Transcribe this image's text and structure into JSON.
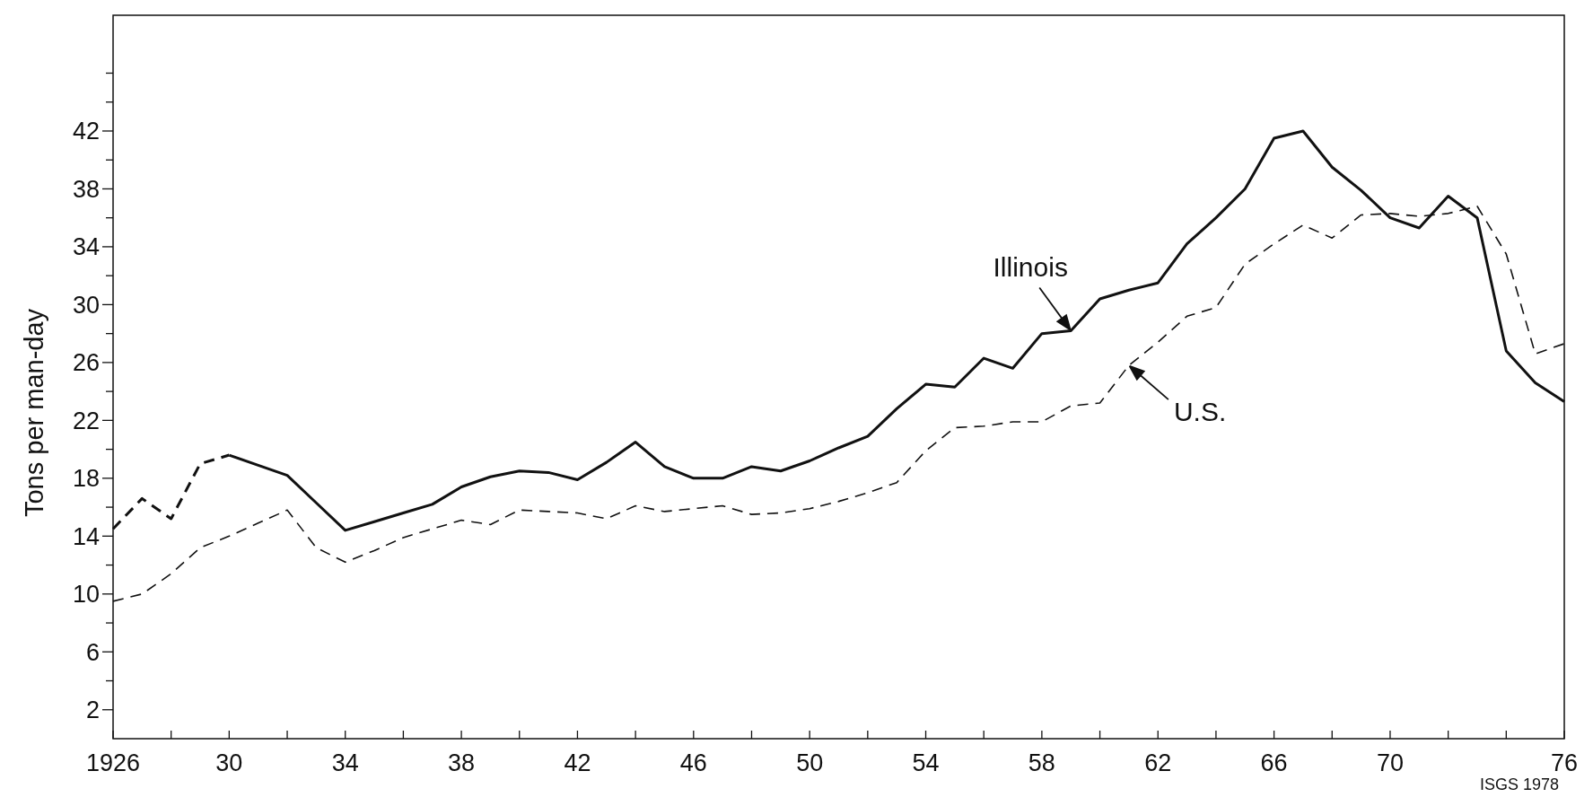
{
  "chart_data": {
    "type": "line",
    "ylabel": "Tons per man-day",
    "xlim": [
      1926,
      1976
    ],
    "xticks": [
      {
        "value": 1926,
        "label": "1926"
      },
      {
        "value": 1928,
        "label": null
      },
      {
        "value": 1930,
        "label": "30"
      },
      {
        "value": 1932,
        "label": null
      },
      {
        "value": 1934,
        "label": "34"
      },
      {
        "value": 1936,
        "label": null
      },
      {
        "value": 1938,
        "label": "38"
      },
      {
        "value": 1940,
        "label": null
      },
      {
        "value": 1942,
        "label": "42"
      },
      {
        "value": 1944,
        "label": null
      },
      {
        "value": 1946,
        "label": "46"
      },
      {
        "value": 1948,
        "label": null
      },
      {
        "value": 1950,
        "label": "50"
      },
      {
        "value": 1952,
        "label": null
      },
      {
        "value": 1954,
        "label": "54"
      },
      {
        "value": 1956,
        "label": null
      },
      {
        "value": 1958,
        "label": "58"
      },
      {
        "value": 1960,
        "label": null
      },
      {
        "value": 1962,
        "label": "62"
      },
      {
        "value": 1964,
        "label": null
      },
      {
        "value": 1966,
        "label": "66"
      },
      {
        "value": 1968,
        "label": null
      },
      {
        "value": 1970,
        "label": "70"
      },
      {
        "value": 1972,
        "label": null
      },
      {
        "value": 1974,
        "label": null
      },
      {
        "value": 1976,
        "label": "76"
      }
    ],
    "ylim": [
      0,
      50
    ],
    "yticks": [
      2,
      {
        "value": 4,
        "label": null
      },
      6,
      {
        "value": 8,
        "label": null
      },
      10,
      {
        "value": 12,
        "label": null
      },
      14,
      {
        "value": 16,
        "label": null
      },
      18,
      {
        "value": 20,
        "label": null
      },
      22,
      {
        "value": 24,
        "label": null
      },
      26,
      {
        "value": 28,
        "label": null
      },
      30,
      {
        "value": 32,
        "label": null
      },
      34,
      {
        "value": 36,
        "label": null
      },
      38,
      {
        "value": 40,
        "label": null
      },
      42,
      {
        "value": 44,
        "label": null
      },
      {
        "value": 46,
        "label": null
      }
    ],
    "grid": false,
    "marker": "none",
    "series": [
      {
        "color": "#111111",
        "line_style": "dashed",
        "x": [
          1926,
          1927,
          1928,
          1929,
          1930
        ],
        "values": [
          14.5,
          16.6,
          15.2,
          19.0,
          19.6
        ]
      },
      {
        "name": "Illinois",
        "color": "#111111",
        "line_style": "solid",
        "x": [
          1930,
          1931,
          1932,
          1933,
          1934,
          1935,
          1936,
          1937,
          1938,
          1939,
          1940,
          1941,
          1942,
          1943,
          1944,
          1945,
          1946,
          1947,
          1948,
          1949,
          1950,
          1951,
          1952,
          1953,
          1954,
          1955,
          1956,
          1957,
          1958,
          1959,
          1960,
          1961,
          1962,
          1963,
          1964,
          1965,
          1966,
          1967,
          1968,
          1969,
          1970,
          1971,
          1972,
          1973,
          1974,
          1975,
          1976
        ],
        "values": [
          19.6,
          18.9,
          18.2,
          16.3,
          14.4,
          15.0,
          15.6,
          16.2,
          17.4,
          18.1,
          18.5,
          18.4,
          17.9,
          19.1,
          20.5,
          18.8,
          18.0,
          18.0,
          18.8,
          18.5,
          19.2,
          20.1,
          20.9,
          22.8,
          24.5,
          24.3,
          26.3,
          25.6,
          28.0,
          28.2,
          30.4,
          31.0,
          31.5,
          34.2,
          36.0,
          38.0,
          41.5,
          42.0,
          39.5,
          37.9,
          36.0,
          35.3,
          37.5,
          36.0,
          26.8,
          24.6,
          23.3
        ]
      },
      {
        "name": "U.S.",
        "color": "#111111",
        "line_style": "dashed",
        "x": [
          1926,
          1927,
          1928,
          1929,
          1930,
          1931,
          1932,
          1933,
          1934,
          1935,
          1936,
          1937,
          1938,
          1939,
          1940,
          1941,
          1942,
          1943,
          1944,
          1945,
          1946,
          1947,
          1948,
          1949,
          1950,
          1951,
          1952,
          1953,
          1954,
          1955,
          1956,
          1957,
          1958,
          1959,
          1960,
          1961,
          1962,
          1963,
          1964,
          1965,
          1966,
          1967,
          1968,
          1969,
          1970,
          1971,
          1972,
          1973,
          1974,
          1975,
          1976
        ],
        "values": [
          9.5,
          10.0,
          11.4,
          13.2,
          14.0,
          14.9,
          15.8,
          13.2,
          12.2,
          13.0,
          13.9,
          14.5,
          15.1,
          14.8,
          15.8,
          15.7,
          15.6,
          15.2,
          16.1,
          15.7,
          15.9,
          16.1,
          15.5,
          15.6,
          15.9,
          16.4,
          17.0,
          17.7,
          19.9,
          21.5,
          21.6,
          21.9,
          21.9,
          23.0,
          23.2,
          25.8,
          27.4,
          29.2,
          29.8,
          32.8,
          34.2,
          35.5,
          34.6,
          36.2,
          36.3,
          36.1,
          36.3,
          36.8,
          33.5,
          26.6,
          27.3
        ]
      }
    ],
    "annotations": [
      "ISGS 1978"
    ]
  }
}
